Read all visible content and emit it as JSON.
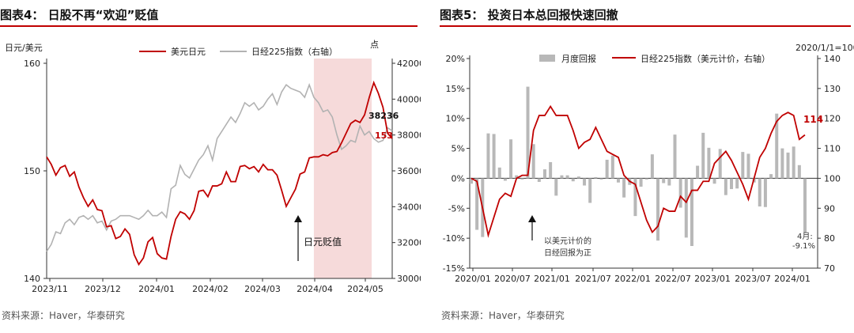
{
  "left": {
    "title": "图表4：  日股不再“欢迎”贬值",
    "source": "资料来源：Haver，华泰研究",
    "axis_left_label": "日元/美元",
    "axis_right_label": "点",
    "annotation": "日元贬值",
    "end_label_nikkei": "38236",
    "end_label_jpy": "153"
  },
  "right": {
    "title": "图表5：  投资日本总回报快速回撤",
    "source": "资料来源：Haver，华泰研究",
    "axis_right_top": "2020/1/1=100",
    "annotation_main": "以美元计价的\n日经回报为正",
    "annotation_last_prefix": "4月:",
    "annotation_last_value": "-9.1%",
    "end_label": "114"
  },
  "chart_data": [
    {
      "type": "line",
      "ylabel": "日元/美元",
      "ylabel_right": "点",
      "x_ticks": [
        "2023/11",
        "2023/12",
        "2024/01",
        "2024/02",
        "2024/03",
        "2024/04",
        "2024/05"
      ],
      "ylim": [
        140,
        160
      ],
      "y_ticks": [
        140,
        150,
        160
      ],
      "ylim_right": [
        30000,
        42000
      ],
      "y_ticks_right": [
        30000,
        32000,
        34000,
        36000,
        38000,
        40000,
        42000
      ],
      "series": [
        {
          "name": "美元日元",
          "axis": "left",
          "color": "#c00000",
          "values": [
            151.3,
            150.6,
            149.6,
            150.3,
            150.5,
            149.5,
            149.9,
            148.5,
            147.5,
            146.7,
            147.3,
            146.4,
            146.3,
            144.8,
            144.9,
            143.7,
            143.9,
            144.6,
            144.1,
            142.2,
            141.3,
            141.9,
            143.4,
            143.8,
            142.3,
            141.9,
            141.8,
            143.9,
            145.5,
            146.2,
            146.0,
            145.5,
            146.3,
            148.1,
            148.2,
            147.6,
            148.6,
            148.6,
            148.8,
            149.9,
            149.0,
            149.0,
            150.4,
            150.5,
            150.2,
            150.4,
            149.9,
            150.6,
            150.1,
            150.1,
            149.6,
            148.2,
            146.7,
            147.5,
            148.3,
            149.7,
            149.9,
            151.2,
            151.3,
            151.3,
            151.5,
            151.4,
            151.7,
            151.8,
            152.6,
            153.5,
            154.4,
            154.7,
            154.5,
            155.2,
            156.8,
            158.2,
            157.2,
            155.9,
            153.5,
            153.0
          ]
        },
        {
          "name": "日经225指数（右轴）",
          "axis": "right",
          "color": "#b2b2b2",
          "values": [
            31500,
            31900,
            32600,
            32500,
            33100,
            33300,
            33000,
            33400,
            33500,
            33300,
            33500,
            33100,
            33200,
            32700,
            33200,
            33300,
            33500,
            33500,
            33500,
            33400,
            33300,
            33500,
            33800,
            33500,
            33500,
            33700,
            33400,
            35000,
            35200,
            36300,
            35800,
            35600,
            36100,
            36600,
            36900,
            37400,
            36600,
            37800,
            38200,
            38600,
            39000,
            38700,
            39200,
            39800,
            39600,
            39800,
            39400,
            39600,
            40000,
            40300,
            39700,
            40400,
            40800,
            40600,
            40500,
            40400,
            40100,
            40800,
            40100,
            39800,
            39300,
            39400,
            39000,
            38000,
            37200,
            37400,
            37700,
            37600,
            38500,
            38000,
            38200,
            37800,
            37600,
            37700,
            38400,
            38236
          ]
        }
      ],
      "highlight": {
        "from_index": 58,
        "to_index": 75
      }
    },
    {
      "type": "bar+line",
      "x_ticks": [
        "2020/01",
        "2020/07",
        "2021/01",
        "2021/07",
        "2022/01",
        "2022/07",
        "2023/01",
        "2023/07",
        "2024/01"
      ],
      "ylim": [
        -15,
        20
      ],
      "y_ticks": [
        -15,
        -10,
        -5,
        0,
        5,
        10,
        15,
        20
      ],
      "ylim_right": [
        70,
        140
      ],
      "y_ticks_right": [
        70,
        80,
        90,
        100,
        110,
        120,
        130,
        140
      ],
      "series": [
        {
          "name": "月度回报",
          "axis": "left",
          "kind": "bar",
          "color": "#b8b8b8",
          "values": [
            -0.9,
            -8.6,
            -9.8,
            7.5,
            7.4,
            1.8,
            -0.4,
            6.5,
            0.5,
            -0.2,
            15.3,
            5.7,
            -0.6,
            1.5,
            2.7,
            -2.9,
            0.5,
            0.5,
            -0.5,
            0.3,
            -1.2,
            -4.1,
            0.2,
            -0.2,
            3.1,
            3.8,
            -0.7,
            -3.2,
            -1.1,
            -6.3,
            -1.4,
            -0.2,
            4.0,
            -10.4,
            -0.8,
            -1.2,
            7.3,
            -4.9,
            -9.9,
            -11.3,
            2.1,
            7.6,
            5.1,
            -0.9,
            4.9,
            -2.8,
            -1.8,
            -1.7,
            4.4,
            4.1,
            -0.7,
            -4.7,
            -4.8,
            0.7,
            10.8,
            5.0,
            4.3,
            5.3,
            2.2,
            -9.1
          ]
        },
        {
          "name": "日经225指数（美元计价，右轴）",
          "axis": "right",
          "kind": "line",
          "color": "#c00000",
          "values": [
            100,
            99,
            90,
            81,
            87,
            93,
            95,
            94,
            100,
            101,
            101,
            116,
            121,
            121,
            124,
            121,
            121,
            121,
            116,
            110,
            112,
            113,
            117,
            113,
            109,
            108,
            107,
            101,
            99,
            98,
            92,
            86,
            82,
            84,
            90,
            89,
            89,
            94,
            92,
            96,
            96,
            99,
            99,
            105,
            107,
            109,
            106,
            102,
            98,
            93,
            100,
            107,
            110,
            115,
            119,
            121,
            122,
            121,
            113,
            114.5
          ]
        }
      ]
    }
  ]
}
